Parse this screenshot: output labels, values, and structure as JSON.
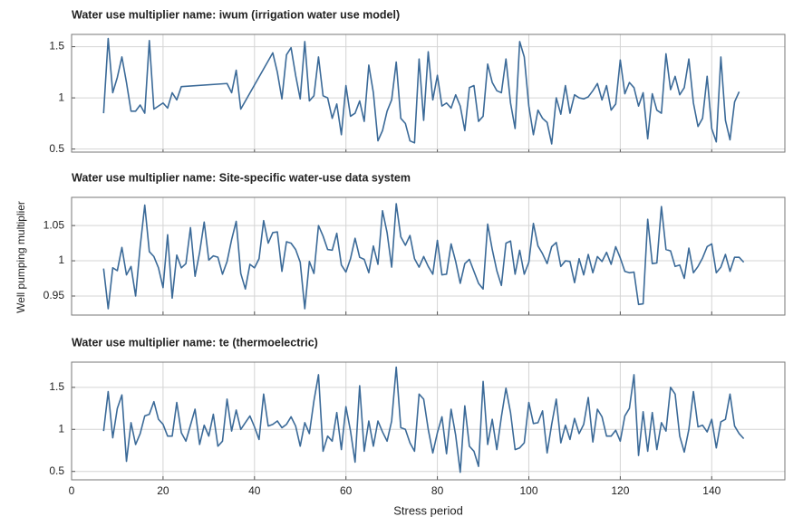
{
  "ylabel": "Well pumping multiplier",
  "chart_data": [
    {
      "type": "line",
      "title": "Water use multiplier name: iwum (irrigation water use model)",
      "x": [
        7,
        8,
        9,
        10,
        11,
        12,
        13,
        14,
        15,
        16,
        17,
        18,
        19,
        20,
        21,
        22,
        23,
        24,
        34,
        35,
        36,
        37,
        44,
        45,
        46,
        47,
        48,
        49,
        50,
        51,
        52,
        53,
        54,
        55,
        56,
        57,
        58,
        59,
        60,
        61,
        62,
        63,
        64,
        65,
        66,
        67,
        68,
        69,
        70,
        71,
        72,
        73,
        74,
        75,
        76,
        77,
        78,
        79,
        80,
        81,
        82,
        83,
        84,
        85,
        86,
        87,
        88,
        89,
        90,
        91,
        92,
        93,
        94,
        95,
        96,
        97,
        98,
        99,
        100,
        101,
        102,
        103,
        104,
        105,
        106,
        107,
        108,
        109,
        110,
        111,
        112,
        113,
        114,
        115,
        116,
        117,
        118,
        119,
        120,
        121,
        122,
        123,
        124,
        125,
        126,
        127,
        128,
        129,
        130,
        131,
        132,
        133,
        134,
        135,
        136,
        137,
        138,
        139,
        140,
        141,
        142,
        143,
        144,
        145,
        146
      ],
      "series": [
        {
          "color": "#3b6a98",
          "values": [
            0.85,
            1.58,
            1.05,
            1.2,
            1.4,
            1.15,
            0.87,
            0.87,
            0.93,
            0.85,
            1.56,
            0.89,
            0.92,
            0.95,
            0.9,
            1.05,
            0.98,
            1.11,
            1.14,
            1.05,
            1.27,
            0.89,
            1.44,
            1.25,
            0.99,
            1.42,
            1.49,
            1.22,
            0.99,
            1.55,
            0.97,
            1.02,
            1.4,
            1.02,
            1.0,
            0.8,
            0.94,
            0.64,
            1.12,
            0.82,
            0.85,
            0.97,
            0.77,
            1.32,
            1.05,
            0.58,
            0.68,
            0.87,
            0.98,
            1.35,
            0.8,
            0.75,
            0.58,
            0.56,
            1.38,
            0.78,
            1.45,
            0.98,
            1.22,
            0.92,
            0.95,
            0.9,
            1.03,
            0.92,
            0.68,
            1.1,
            1.12,
            0.77,
            0.82,
            1.33,
            1.15,
            1.07,
            1.05,
            1.38,
            0.95,
            0.7,
            1.55,
            1.4,
            0.92,
            0.64,
            0.88,
            0.8,
            0.76,
            0.55,
            1.0,
            0.84,
            1.12,
            0.85,
            1.03,
            1.0,
            0.99,
            1.01,
            1.07,
            1.14,
            0.98,
            1.12,
            0.88,
            0.94,
            1.37,
            1.04,
            1.15,
            1.1,
            0.92,
            1.05,
            0.6,
            1.04,
            0.88,
            0.85,
            1.43,
            1.08,
            1.21,
            1.03,
            1.1,
            1.38,
            0.95,
            0.72,
            0.8,
            1.21,
            0.7,
            0.57,
            1.4,
            0.78,
            0.59,
            0.96,
            1.06
          ]
        }
      ],
      "xlim": [
        0,
        156
      ],
      "xticks": [
        0,
        20,
        40,
        60,
        80,
        100,
        120,
        140
      ],
      "ylim": [
        0.47,
        1.62
      ],
      "yticks": [
        0.5,
        1,
        1.5
      ],
      "grid": true
    },
    {
      "type": "line",
      "title": "Water use multiplier name: Site-specific water-use data system",
      "x": [
        7,
        8,
        9,
        10,
        11,
        12,
        13,
        14,
        15,
        16,
        17,
        18,
        19,
        20,
        21,
        22,
        23,
        24,
        25,
        26,
        27,
        28,
        29,
        30,
        31,
        32,
        33,
        34,
        35,
        36,
        37,
        38,
        39,
        40,
        41,
        42,
        43,
        44,
        45,
        46,
        47,
        48,
        49,
        50,
        51,
        52,
        53,
        54,
        55,
        56,
        57,
        58,
        59,
        60,
        61,
        62,
        63,
        64,
        65,
        66,
        67,
        68,
        69,
        70,
        71,
        72,
        73,
        74,
        75,
        76,
        77,
        78,
        79,
        80,
        81,
        82,
        83,
        84,
        85,
        86,
        87,
        88,
        89,
        90,
        91,
        92,
        93,
        94,
        95,
        96,
        97,
        98,
        99,
        100,
        101,
        102,
        103,
        104,
        105,
        106,
        107,
        108,
        109,
        110,
        111,
        112,
        113,
        114,
        115,
        116,
        117,
        118,
        119,
        120,
        121,
        122,
        123,
        124,
        125,
        126,
        127,
        128,
        129,
        130,
        131,
        132,
        133,
        134,
        135,
        136,
        137,
        138,
        139,
        140,
        141,
        142,
        143,
        144,
        145,
        146,
        147
      ],
      "series": [
        {
          "color": "#3b6a98",
          "values": [
            0.989,
            0.932,
            0.99,
            0.986,
            1.019,
            0.98,
            0.992,
            0.95,
            1.02,
            1.079,
            1.013,
            1.006,
            0.99,
            0.962,
            1.037,
            0.947,
            1.008,
            0.99,
            0.996,
            1.047,
            0.978,
            1.012,
            1.055,
            1.001,
            1.007,
            1.005,
            0.981,
            0.999,
            1.03,
            1.056,
            0.982,
            0.96,
            0.995,
            0.99,
            1.003,
            1.057,
            1.025,
            1.04,
            1.041,
            0.985,
            1.027,
            1.025,
            1.016,
            0.998,
            0.932,
            0.999,
            0.982,
            1.05,
            1.035,
            1.016,
            1.015,
            1.039,
            0.994,
            0.984,
            1.003,
            1.032,
            1.005,
            1.002,
            0.983,
            1.021,
            0.995,
            1.071,
            1.04,
            0.991,
            1.081,
            1.034,
            1.022,
            1.036,
            1.003,
            0.991,
            1.006,
            0.992,
            0.981,
            1.029,
            0.98,
            0.981,
            1.024,
            0.999,
            0.968,
            0.996,
            1.002,
            0.985,
            0.968,
            0.96,
            1.052,
            1.016,
            0.986,
            0.965,
            1.025,
            1.028,
            0.981,
            1.015,
            0.981,
            0.998,
            1.053,
            1.021,
            1.01,
            0.996,
            1.02,
            1.026,
            0.992,
            1.0,
            0.999,
            0.969,
            1.003,
            0.98,
            1.009,
            0.983,
            1.006,
            0.999,
            1.012,
            0.995,
            1.02,
            1.004,
            0.985,
            0.983,
            0.984,
            0.938,
            0.939,
            1.059,
            0.996,
            0.997,
            1.077,
            1.016,
            1.014,
            0.992,
            0.994,
            0.975,
            1.018,
            0.983,
            0.992,
            1.004,
            1.02,
            1.024,
            0.983,
            0.991,
            1.009,
            0.985,
            1.005,
            1.005,
            0.998
          ]
        }
      ],
      "xlim": [
        0,
        156
      ],
      "xticks": [
        0,
        20,
        40,
        60,
        80,
        100,
        120,
        140
      ],
      "ylim": [
        0.923,
        1.09
      ],
      "yticks": [
        0.95,
        1,
        1.05
      ],
      "grid": true
    },
    {
      "type": "line",
      "title": "Water use multiplier name: te (thermoelectric)",
      "xlabel": "Stress period",
      "x": [
        7,
        8,
        9,
        10,
        11,
        12,
        13,
        14,
        15,
        16,
        17,
        18,
        19,
        20,
        21,
        22,
        23,
        24,
        25,
        26,
        27,
        28,
        29,
        30,
        31,
        32,
        33,
        34,
        35,
        36,
        37,
        38,
        39,
        40,
        41,
        42,
        43,
        44,
        45,
        46,
        47,
        48,
        49,
        50,
        51,
        52,
        53,
        54,
        55,
        56,
        57,
        58,
        59,
        60,
        61,
        62,
        63,
        64,
        65,
        66,
        67,
        68,
        69,
        70,
        71,
        72,
        73,
        74,
        75,
        76,
        77,
        78,
        79,
        80,
        81,
        82,
        83,
        84,
        85,
        86,
        87,
        88,
        89,
        90,
        91,
        92,
        93,
        94,
        95,
        96,
        97,
        98,
        99,
        100,
        101,
        102,
        103,
        104,
        105,
        106,
        107,
        108,
        109,
        110,
        111,
        112,
        113,
        114,
        115,
        116,
        117,
        118,
        119,
        120,
        121,
        122,
        123,
        124,
        125,
        126,
        127,
        128,
        129,
        130,
        131,
        132,
        133,
        134,
        135,
        136,
        137,
        138,
        139,
        140,
        141,
        142,
        143,
        144,
        145,
        146,
        147
      ],
      "series": [
        {
          "color": "#3b6a98",
          "values": [
            0.98,
            1.45,
            0.9,
            1.25,
            1.41,
            0.62,
            1.08,
            0.82,
            0.95,
            1.16,
            1.18,
            1.33,
            1.12,
            1.06,
            0.92,
            0.92,
            1.32,
            0.96,
            0.86,
            1.05,
            1.24,
            0.82,
            1.05,
            0.92,
            1.18,
            0.8,
            0.86,
            1.36,
            0.98,
            1.23,
            1.0,
            1.08,
            1.16,
            1.03,
            0.88,
            1.42,
            1.04,
            1.06,
            1.1,
            1.02,
            1.06,
            1.15,
            1.04,
            0.8,
            1.08,
            0.95,
            1.34,
            1.65,
            0.74,
            0.92,
            0.86,
            1.2,
            0.76,
            1.27,
            0.98,
            0.61,
            1.52,
            0.74,
            1.1,
            0.8,
            1.1,
            0.97,
            0.86,
            1.1,
            1.74,
            1.02,
            1.0,
            0.84,
            0.74,
            1.42,
            1.36,
            1.0,
            0.72,
            0.96,
            1.15,
            0.71,
            1.24,
            0.93,
            0.49,
            1.28,
            0.8,
            0.74,
            0.56,
            1.57,
            0.82,
            1.12,
            0.76,
            1.15,
            1.49,
            1.2,
            0.76,
            0.78,
            0.84,
            1.32,
            1.07,
            1.08,
            1.22,
            0.72,
            1.06,
            1.36,
            0.84,
            1.05,
            0.88,
            1.13,
            0.95,
            1.06,
            1.38,
            0.85,
            1.24,
            1.15,
            0.92,
            0.92,
            0.99,
            0.86,
            1.16,
            1.25,
            1.65,
            0.69,
            1.21,
            0.74,
            1.2,
            0.76,
            1.08,
            0.98,
            1.5,
            1.42,
            0.92,
            0.73,
            1.0,
            1.45,
            1.03,
            1.05,
            0.97,
            1.12,
            0.78,
            1.09,
            1.12,
            1.42,
            1.04,
            0.95,
            0.89
          ]
        }
      ],
      "xlim": [
        0,
        156
      ],
      "xticks": [
        0,
        20,
        40,
        60,
        80,
        100,
        120,
        140
      ],
      "ylim": [
        0.4,
        1.8
      ],
      "yticks": [
        0.5,
        1,
        1.5
      ],
      "grid": true
    }
  ]
}
